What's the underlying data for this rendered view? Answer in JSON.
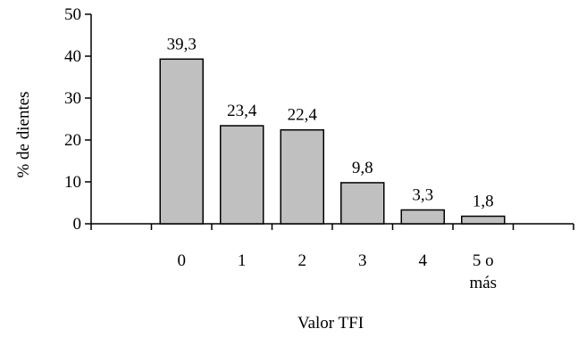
{
  "chart_data": {
    "type": "bar",
    "categories": [
      "",
      "0",
      "1",
      "2",
      "3",
      "4",
      "5 o\nmás",
      ""
    ],
    "values": [
      null,
      39.3,
      23.4,
      22.4,
      9.8,
      3.3,
      1.8,
      null
    ],
    "data_labels": [
      "",
      "39,3",
      "23,4",
      "22,4",
      "9,8",
      "3,3",
      "1,8",
      ""
    ],
    "yticks": [
      "0",
      "10",
      "20",
      "30",
      "40",
      "50"
    ],
    "ylim": [
      0,
      50
    ],
    "title": "",
    "xlabel": "Valor TFI",
    "ylabel": "% de dientes",
    "bar_color": "#c0c0c0",
    "bar_edge_color": "#000000",
    "grid": false,
    "legend": "none"
  }
}
